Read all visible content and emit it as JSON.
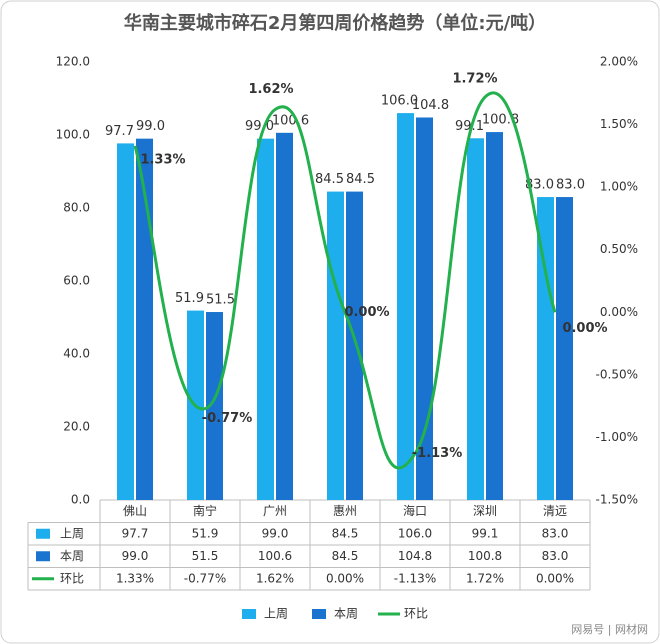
{
  "chart_data": {
    "type": "bar_line",
    "title": "华南主要城市碎石2月第四周价格趋势（单位:元/吨）",
    "categories": [
      "佛山",
      "南宁",
      "广州",
      "惠州",
      "海口",
      "深圳",
      "清远"
    ],
    "series": [
      {
        "name": "上周",
        "type": "bar",
        "color": "#1eaeee",
        "label_color": "#3f8cc8",
        "values": [
          97.7,
          51.9,
          99.0,
          84.5,
          106.0,
          99.1,
          83.0
        ],
        "value_labels": [
          "97.7",
          "51.9",
          "99.0",
          "84.5",
          "106.0",
          "99.1",
          "83.0"
        ]
      },
      {
        "name": "本周",
        "type": "bar",
        "color": "#1a74cf",
        "label_color": "#e07b20",
        "values": [
          99.0,
          51.5,
          100.6,
          84.5,
          104.8,
          100.8,
          83.0
        ],
        "value_labels": [
          "99.0",
          "51.5",
          "100.6",
          "84.5",
          "104.8",
          "100.8",
          "83.0"
        ]
      },
      {
        "name": "环比",
        "type": "line",
        "axis": "y2",
        "color": "#22b14c",
        "label_color": "#16a83e",
        "values": [
          1.33,
          -0.77,
          1.62,
          0.0,
          -1.13,
          1.72,
          0.0
        ],
        "value_labels": [
          "1.33%",
          "-0.77%",
          "1.62%",
          "0.00%",
          "-1.13%",
          "1.72%",
          "0.00%"
        ]
      }
    ],
    "ylim": [
      0,
      120
    ],
    "yticks": [
      {
        "value": 0,
        "label": "0.0"
      },
      {
        "value": 20,
        "label": "20.0"
      },
      {
        "value": 40,
        "label": "40.0"
      },
      {
        "value": 60,
        "label": "60.0"
      },
      {
        "value": 80,
        "label": "80.0"
      },
      {
        "value": 100,
        "label": "100.0"
      },
      {
        "value": 120,
        "label": "120.0"
      }
    ],
    "y2lim": [
      -1.5,
      2.0
    ],
    "y2ticks": [
      {
        "value": -1.5,
        "label": "-1.50%"
      },
      {
        "value": -1.0,
        "label": "-1.00%"
      },
      {
        "value": -0.5,
        "label": "-0.50%"
      },
      {
        "value": 0,
        "label": "0.00%"
      },
      {
        "value": 0.5,
        "label": "0.50%"
      },
      {
        "value": 1.0,
        "label": "1.00%"
      },
      {
        "value": 1.5,
        "label": "1.50%"
      },
      {
        "value": 2.0,
        "label": "2.00%"
      }
    ],
    "grid": false,
    "legend": "bottom",
    "data_table": true,
    "source": "网易号 | 网材网"
  }
}
